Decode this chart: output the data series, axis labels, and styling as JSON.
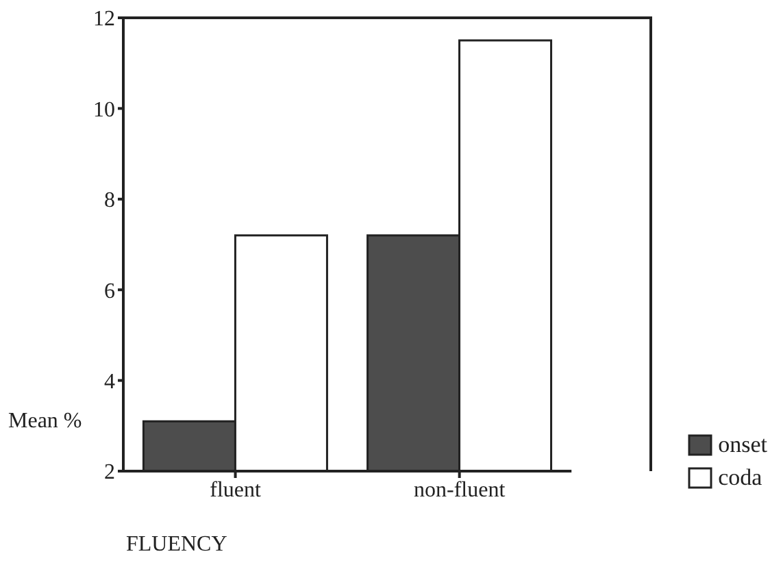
{
  "chart_data": {
    "type": "bar",
    "xlabel": "FLUENCY",
    "ylabel": "Mean %",
    "categories": [
      "fluent",
      "non-fluent"
    ],
    "series": [
      {
        "name": "onset",
        "color": "#4d4d4d",
        "values": [
          3.1,
          7.2
        ]
      },
      {
        "name": "coda",
        "color": "#ffffff",
        "values": [
          7.2,
          11.5
        ]
      }
    ],
    "ylim": [
      2,
      12
    ],
    "yticks": [
      2,
      4,
      6,
      8,
      10,
      12
    ],
    "legend": "bottom right"
  }
}
